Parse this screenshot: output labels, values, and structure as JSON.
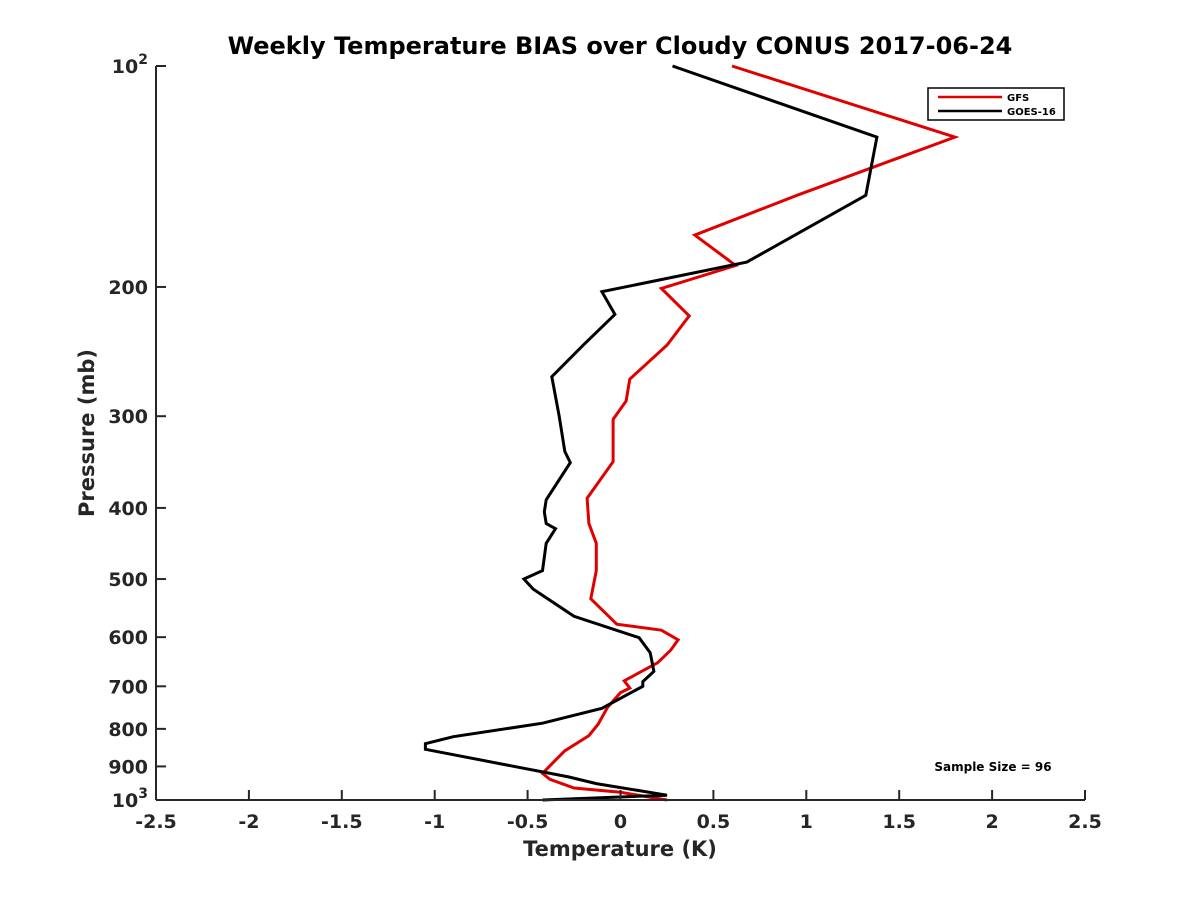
{
  "chart_data": {
    "type": "line",
    "title": "Weekly Temperature BIAS over Cloudy CONUS 2017-06-24",
    "xlabel": "Temperature (K)",
    "ylabel": "Pressure (mb)",
    "xlim": [
      -2.5,
      2.5
    ],
    "ylim": [
      100,
      1000
    ],
    "y_scale": "log",
    "y_reversed": true,
    "grid": false,
    "legend_position": "top-right",
    "x_ticks": [
      -2.5,
      -2,
      -1.5,
      -1,
      -0.5,
      0,
      0.5,
      1,
      1.5,
      2,
      2.5
    ],
    "x_tick_labels": [
      "-2.5",
      "-2",
      "-1.5",
      "-1",
      "-0.5",
      "0",
      "0.5",
      "1",
      "1.5",
      "2",
      "2.5"
    ],
    "y_ticks": [
      100,
      200,
      300,
      400,
      500,
      600,
      700,
      800,
      900,
      1000
    ],
    "y_tick_labels": [
      {
        "base": "10",
        "exp": "2"
      },
      {
        "base": "200",
        "exp": ""
      },
      {
        "base": "300",
        "exp": ""
      },
      {
        "base": "400",
        "exp": ""
      },
      {
        "base": "500",
        "exp": ""
      },
      {
        "base": "600",
        "exp": ""
      },
      {
        "base": "700",
        "exp": ""
      },
      {
        "base": "800",
        "exp": ""
      },
      {
        "base": "900",
        "exp": ""
      },
      {
        "base": "10",
        "exp": "3"
      }
    ],
    "annotation": "Sample Size = 96",
    "series": [
      {
        "name": "GFS",
        "color": "#e00000",
        "points": [
          [
            0.6,
            100
          ],
          [
            1.8,
            125
          ],
          [
            0.95,
            150
          ],
          [
            0.4,
            170
          ],
          [
            0.62,
            187
          ],
          [
            0.22,
            201
          ],
          [
            0.37,
            219
          ],
          [
            0.25,
            240
          ],
          [
            0.05,
            267
          ],
          [
            0.03,
            286
          ],
          [
            -0.04,
            303
          ],
          [
            -0.04,
            346
          ],
          [
            -0.18,
            388
          ],
          [
            -0.17,
            420
          ],
          [
            -0.13,
            447
          ],
          [
            -0.13,
            487
          ],
          [
            -0.16,
            532
          ],
          [
            -0.02,
            576
          ],
          [
            0.22,
            587
          ],
          [
            0.31,
            605
          ],
          [
            0.27,
            625
          ],
          [
            0.2,
            650
          ],
          [
            0.02,
            688
          ],
          [
            0.05,
            704
          ],
          [
            0.0,
            714
          ],
          [
            -0.07,
            748
          ],
          [
            -0.12,
            788
          ],
          [
            -0.17,
            817
          ],
          [
            -0.3,
            857
          ],
          [
            -0.36,
            888
          ],
          [
            -0.42,
            920
          ],
          [
            -0.38,
            937
          ],
          [
            -0.25,
            963
          ],
          [
            0.0,
            976
          ],
          [
            0.25,
            1000
          ]
        ]
      },
      {
        "name": "GOES-16",
        "color": "#000000",
        "points": [
          [
            0.28,
            100
          ],
          [
            1.38,
            125
          ],
          [
            1.32,
            150
          ],
          [
            0.68,
            185
          ],
          [
            -0.1,
            203
          ],
          [
            -0.03,
            218
          ],
          [
            -0.2,
            240
          ],
          [
            -0.37,
            265
          ],
          [
            -0.33,
            300
          ],
          [
            -0.3,
            335
          ],
          [
            -0.27,
            347
          ],
          [
            -0.4,
            390
          ],
          [
            -0.41,
            405
          ],
          [
            -0.4,
            420
          ],
          [
            -0.35,
            427
          ],
          [
            -0.4,
            447
          ],
          [
            -0.42,
            487
          ],
          [
            -0.52,
            500
          ],
          [
            -0.47,
            516
          ],
          [
            -0.25,
            562
          ],
          [
            0.1,
            601
          ],
          [
            0.16,
            630
          ],
          [
            0.18,
            668
          ],
          [
            0.12,
            690
          ],
          [
            0.12,
            700
          ],
          [
            -0.1,
            750
          ],
          [
            -0.42,
            786
          ],
          [
            -0.9,
            820
          ],
          [
            -1.05,
            838
          ],
          [
            -1.05,
            853
          ],
          [
            -0.28,
            930
          ],
          [
            -0.13,
            950
          ],
          [
            0.25,
            985
          ],
          [
            -0.42,
            1000
          ]
        ]
      }
    ]
  }
}
